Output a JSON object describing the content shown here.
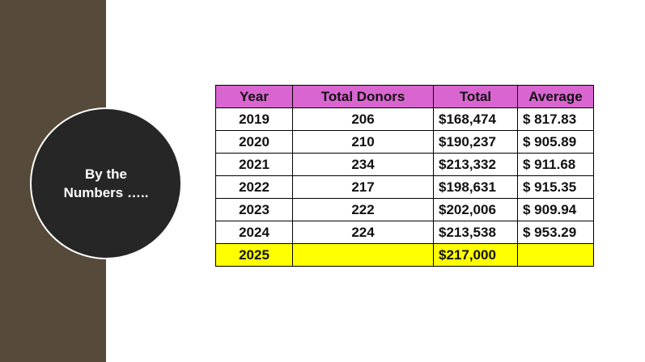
{
  "circle": {
    "line1": "By the",
    "line2": "Numbers ….."
  },
  "table": {
    "headers": [
      "Year",
      "Total Donors",
      "Total",
      "Average"
    ],
    "rows": [
      [
        "2019",
        "206",
        "$168,474",
        "$ 817.83"
      ],
      [
        "2020",
        "210",
        "$190,237",
        "$ 905.89"
      ],
      [
        "2021",
        "234",
        "$213,332",
        "$ 911.68"
      ],
      [
        "2022",
        "217",
        "$198,631",
        "$ 915.35"
      ],
      [
        "2023",
        "222",
        "$202,006",
        "$ 909.94"
      ],
      [
        "2024",
        "224",
        "$213,538",
        "$ 953.29"
      ],
      [
        "2025",
        "",
        "$217,000",
        ""
      ]
    ]
  },
  "colors": {
    "sidebar": "#564a3a",
    "circle": "#262626",
    "header": "#d966d0",
    "highlight": "#ffff00"
  }
}
